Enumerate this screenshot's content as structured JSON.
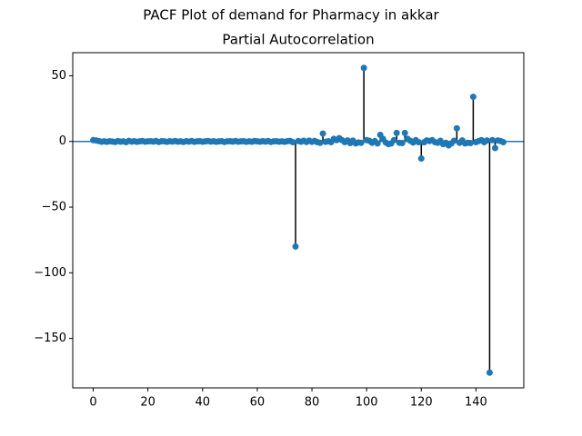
{
  "chart_data": {
    "type": "stem",
    "suptitle": "PACF Plot of demand for Pharmacy in akkar",
    "title": "Partial Autocorrelation",
    "color": "#1f77b4",
    "stem_color": "#000000",
    "x": [
      0,
      1,
      2,
      3,
      4,
      5,
      6,
      7,
      8,
      9,
      10,
      11,
      12,
      13,
      14,
      15,
      16,
      17,
      18,
      19,
      20,
      21,
      22,
      23,
      24,
      25,
      26,
      27,
      28,
      29,
      30,
      31,
      32,
      33,
      34,
      35,
      36,
      37,
      38,
      39,
      40,
      41,
      42,
      43,
      44,
      45,
      46,
      47,
      48,
      49,
      50,
      51,
      52,
      53,
      54,
      55,
      56,
      57,
      58,
      59,
      60,
      61,
      62,
      63,
      64,
      65,
      66,
      67,
      68,
      69,
      70,
      71,
      72,
      73,
      74,
      75,
      76,
      77,
      78,
      79,
      80,
      81,
      82,
      83,
      84,
      85,
      86,
      87,
      88,
      89,
      90,
      91,
      92,
      93,
      94,
      95,
      96,
      97,
      98,
      99,
      100,
      101,
      102,
      103,
      104,
      105,
      106,
      107,
      108,
      109,
      110,
      111,
      112,
      113,
      114,
      115,
      116,
      117,
      118,
      119,
      120,
      121,
      122,
      123,
      124,
      125,
      126,
      127,
      128,
      129,
      130,
      131,
      132,
      133,
      134,
      135,
      136,
      137,
      138,
      139,
      140,
      141,
      142,
      143,
      144,
      145,
      146,
      147,
      148,
      149,
      150
    ],
    "values": [
      1,
      0.8,
      0.3,
      -0.2,
      0.1,
      -0.3,
      0.2,
      -0.1,
      -0.4,
      0.3,
      -0.2,
      0.1,
      -0.5,
      0.4,
      -0.1,
      0.2,
      -0.3,
      0.1,
      0.3,
      -0.2,
      0.1,
      0.2,
      -0.1,
      0.3,
      -0.4,
      0.2,
      0.1,
      -0.3,
      0.2,
      -0.1,
      0.3,
      -0.2,
      0.1,
      -0.4,
      0.2,
      -0.1,
      0.3,
      -0.3,
      0.1,
      0.2,
      -0.2,
      0.1,
      0.3,
      -0.1,
      0.2,
      -0.3,
      0.1,
      0.2,
      -0.4,
      0.1,
      0.2,
      -0.1,
      0.3,
      -0.2,
      0.1,
      0.2,
      -0.3,
      0.1,
      -0.2,
      0.3,
      0.1,
      -0.2,
      0.2,
      -0.1,
      0.3,
      -0.4,
      0.1,
      0.2,
      -0.2,
      0.1,
      -0.3,
      0.2,
      0.4,
      -0.5,
      -80,
      0.3,
      -0.2,
      0.5,
      -0.4,
      0.6,
      -0.3,
      0.4,
      -0.5,
      -1,
      6,
      -0.3,
      0.2,
      -0.5,
      2,
      1,
      2.5,
      1,
      -0.5,
      0.8,
      -1.2,
      0.6,
      -1.5,
      -0.8,
      -1,
      56,
      1,
      0.5,
      -1,
      0.3,
      -1.5,
      5,
      2,
      -0.8,
      -2,
      -1.5,
      1,
      6.5,
      -1,
      -1.2,
      6.5,
      2,
      0.5,
      -0.8,
      1,
      -0.5,
      -13,
      -0.6,
      0.8,
      0.3,
      1,
      -0.5,
      -1,
      0.5,
      -2,
      -1,
      -3,
      -1.5,
      0.5,
      10,
      -1,
      0.8,
      -1.5,
      -1,
      -1.2,
      34,
      -0.5,
      0.3,
      1,
      -0.5,
      0.8,
      -176,
      1,
      -5,
      0.8,
      0.3,
      -0.5
    ],
    "xlim": [
      -7.5,
      157.5
    ],
    "xticks": [
      0,
      20,
      40,
      60,
      80,
      100,
      120,
      140
    ],
    "ylim": [
      -187.6,
      67.6
    ],
    "yticks": [
      {
        "value": -150,
        "label": "−150"
      },
      {
        "value": -100,
        "label": "−100"
      },
      {
        "value": -50,
        "label": "−50"
      },
      0,
      50
    ]
  }
}
